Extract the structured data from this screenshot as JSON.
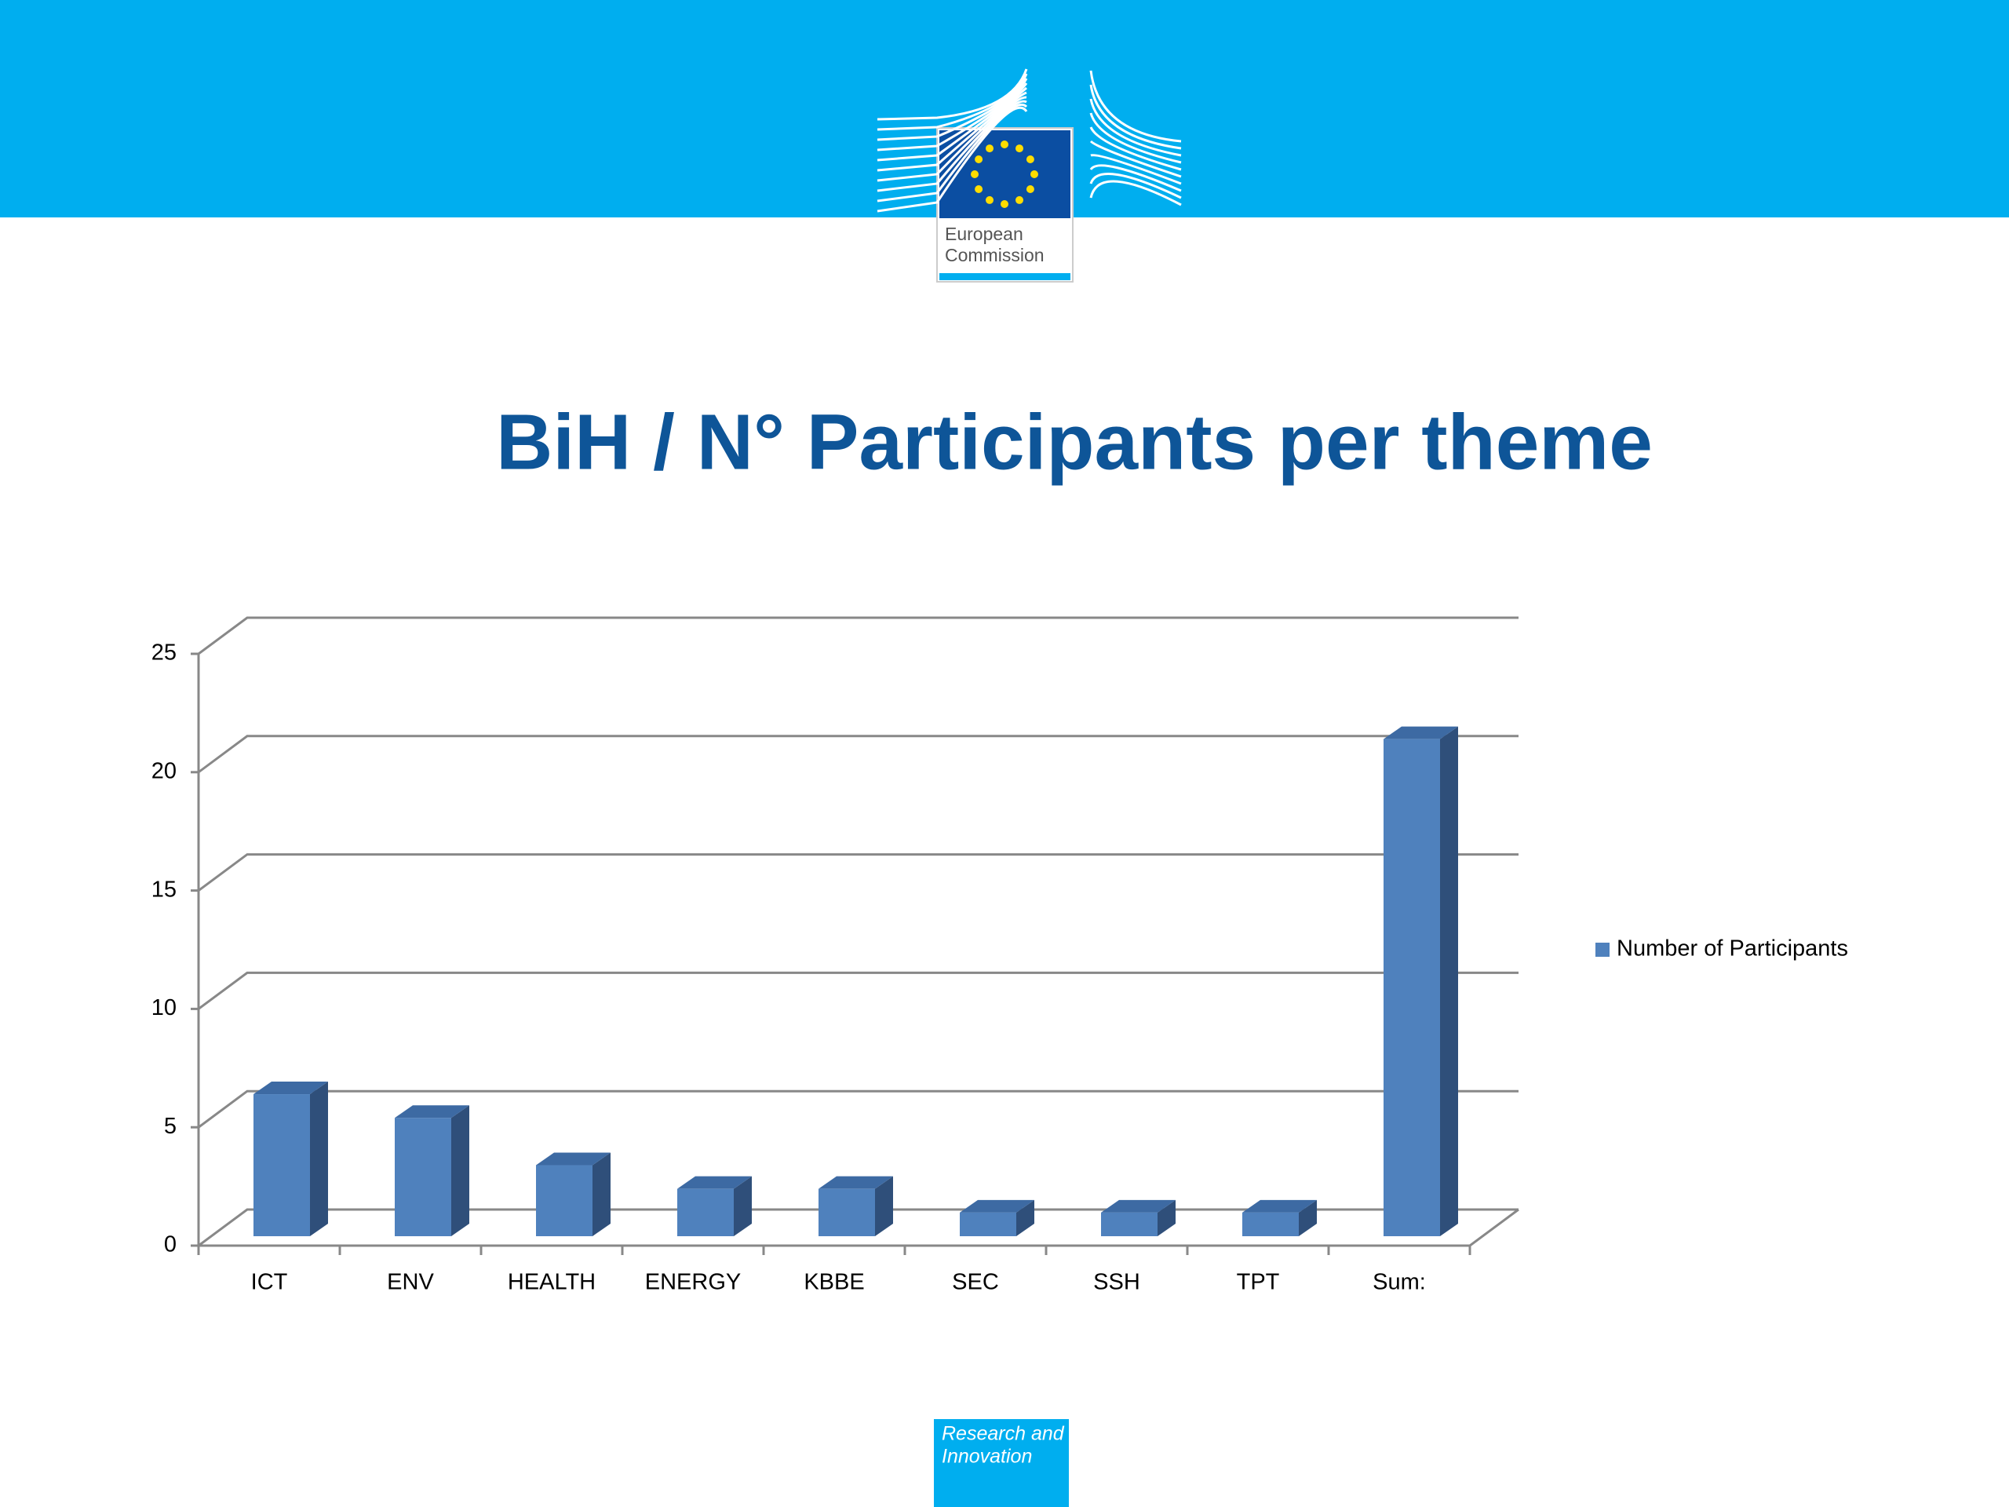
{
  "logo": {
    "line1": "European",
    "line2": "Commission"
  },
  "footer": {
    "line1": "Research and",
    "line2": "Innovation"
  },
  "chart_data": {
    "type": "bar",
    "title": "BiH / N° Participants per theme",
    "categories": [
      "ICT",
      "ENV",
      "HEALTH",
      "ENERGY",
      "KBBE",
      "SEC",
      "SSH",
      "TPT",
      "Sum:"
    ],
    "series": [
      {
        "name": "Number of Participants",
        "color": "#4f81bd",
        "values": [
          6,
          5,
          3,
          2,
          2,
          1,
          1,
          1,
          21
        ]
      }
    ],
    "ylim": [
      0,
      25
    ],
    "yticks": [
      0,
      5,
      10,
      15,
      20,
      25
    ],
    "grid": true,
    "legend": "right"
  }
}
